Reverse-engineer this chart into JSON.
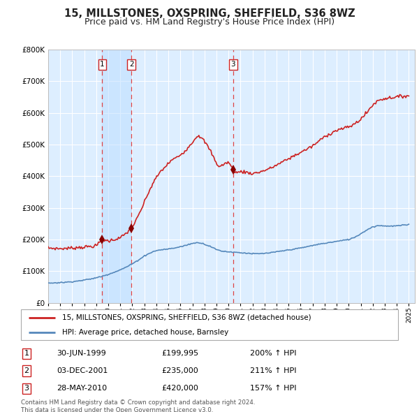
{
  "title": "15, MILLSTONES, OXSPRING, SHEFFIELD, S36 8WZ",
  "subtitle": "Price paid vs. HM Land Registry's House Price Index (HPI)",
  "ylim": [
    0,
    800000
  ],
  "yticks": [
    0,
    100000,
    200000,
    300000,
    400000,
    500000,
    600000,
    700000,
    800000
  ],
  "xlim_start": 1995.0,
  "xlim_end": 2025.5,
  "title_fontsize": 10.5,
  "subtitle_fontsize": 9,
  "background_color": "#ffffff",
  "plot_bg_color": "#ddeeff",
  "grid_color": "#ffffff",
  "red_line_color": "#cc2222",
  "blue_line_color": "#5588bb",
  "sale_marker_color": "#880000",
  "dashed_line_color": "#dd4444",
  "shade_color": "#bbddff",
  "legend_label_red": "15, MILLSTONES, OXSPRING, SHEFFIELD, S36 8WZ (detached house)",
  "legend_label_blue": "HPI: Average price, detached house, Barnsley",
  "footer_text": "Contains HM Land Registry data © Crown copyright and database right 2024.\nThis data is licensed under the Open Government Licence v3.0.",
  "sales": [
    {
      "number": 1,
      "year": 1999.5,
      "price": 199995,
      "label": "30-JUN-1999",
      "price_str": "£199,995",
      "hpi_str": "200% ↑ HPI"
    },
    {
      "number": 2,
      "year": 2001.92,
      "price": 235000,
      "label": "03-DEC-2001",
      "price_str": "£235,000",
      "hpi_str": "211% ↑ HPI"
    },
    {
      "number": 3,
      "year": 2010.38,
      "price": 420000,
      "label": "28-MAY-2010",
      "price_str": "£420,000",
      "hpi_str": "157% ↑ HPI"
    }
  ],
  "red_anchors": [
    [
      1995.0,
      173000
    ],
    [
      1995.5,
      172000
    ],
    [
      1996.0,
      171000
    ],
    [
      1996.5,
      172000
    ],
    [
      1997.0,
      173000
    ],
    [
      1997.5,
      175000
    ],
    [
      1998.0,
      176000
    ],
    [
      1998.5,
      178000
    ],
    [
      1999.0,
      180000
    ],
    [
      1999.5,
      199995
    ],
    [
      2000.0,
      195000
    ],
    [
      2000.5,
      200000
    ],
    [
      2001.0,
      205000
    ],
    [
      2001.5,
      220000
    ],
    [
      2001.92,
      235000
    ],
    [
      2002.25,
      255000
    ],
    [
      2002.75,
      295000
    ],
    [
      2003.25,
      340000
    ],
    [
      2003.75,
      380000
    ],
    [
      2004.25,
      410000
    ],
    [
      2004.75,
      430000
    ],
    [
      2005.25,
      450000
    ],
    [
      2005.75,
      460000
    ],
    [
      2006.25,
      475000
    ],
    [
      2006.75,
      495000
    ],
    [
      2007.25,
      520000
    ],
    [
      2007.5,
      530000
    ],
    [
      2007.75,
      520000
    ],
    [
      2008.0,
      510000
    ],
    [
      2008.25,
      495000
    ],
    [
      2008.5,
      480000
    ],
    [
      2008.75,
      460000
    ],
    [
      2009.0,
      440000
    ],
    [
      2009.25,
      430000
    ],
    [
      2009.5,
      435000
    ],
    [
      2009.75,
      440000
    ],
    [
      2010.0,
      445000
    ],
    [
      2010.38,
      420000
    ],
    [
      2010.5,
      415000
    ],
    [
      2010.75,
      410000
    ],
    [
      2011.0,
      415000
    ],
    [
      2011.5,
      412000
    ],
    [
      2012.0,
      408000
    ],
    [
      2012.5,
      412000
    ],
    [
      2013.0,
      418000
    ],
    [
      2013.5,
      425000
    ],
    [
      2014.0,
      435000
    ],
    [
      2014.5,
      445000
    ],
    [
      2015.0,
      455000
    ],
    [
      2015.5,
      465000
    ],
    [
      2016.0,
      475000
    ],
    [
      2016.5,
      485000
    ],
    [
      2017.0,
      495000
    ],
    [
      2017.5,
      510000
    ],
    [
      2018.0,
      525000
    ],
    [
      2018.5,
      535000
    ],
    [
      2019.0,
      545000
    ],
    [
      2019.5,
      550000
    ],
    [
      2020.0,
      555000
    ],
    [
      2020.5,
      565000
    ],
    [
      2021.0,
      580000
    ],
    [
      2021.5,
      600000
    ],
    [
      2022.0,
      625000
    ],
    [
      2022.5,
      640000
    ],
    [
      2023.0,
      645000
    ],
    [
      2023.5,
      648000
    ],
    [
      2024.0,
      650000
    ],
    [
      2024.5,
      652000
    ],
    [
      2025.0,
      655000
    ]
  ],
  "blue_anchors": [
    [
      1995.0,
      62000
    ],
    [
      1995.5,
      63000
    ],
    [
      1996.0,
      64000
    ],
    [
      1996.5,
      65000
    ],
    [
      1997.0,
      67000
    ],
    [
      1997.5,
      69000
    ],
    [
      1998.0,
      72000
    ],
    [
      1998.5,
      75000
    ],
    [
      1999.0,
      79000
    ],
    [
      1999.5,
      84000
    ],
    [
      2000.0,
      90000
    ],
    [
      2000.5,
      97000
    ],
    [
      2001.0,
      104000
    ],
    [
      2001.5,
      113000
    ],
    [
      2002.0,
      123000
    ],
    [
      2002.5,
      135000
    ],
    [
      2003.0,
      148000
    ],
    [
      2003.5,
      158000
    ],
    [
      2004.0,
      165000
    ],
    [
      2004.5,
      168000
    ],
    [
      2005.0,
      170000
    ],
    [
      2005.5,
      173000
    ],
    [
      2006.0,
      177000
    ],
    [
      2006.5,
      182000
    ],
    [
      2007.0,
      188000
    ],
    [
      2007.5,
      190000
    ],
    [
      2007.75,
      189000
    ],
    [
      2008.0,
      185000
    ],
    [
      2008.5,
      178000
    ],
    [
      2009.0,
      168000
    ],
    [
      2009.5,
      163000
    ],
    [
      2009.75,
      162000
    ],
    [
      2010.0,
      161000
    ],
    [
      2010.5,
      160000
    ],
    [
      2011.0,
      158000
    ],
    [
      2011.5,
      157000
    ],
    [
      2012.0,
      155000
    ],
    [
      2012.5,
      155000
    ],
    [
      2013.0,
      156000
    ],
    [
      2013.5,
      158000
    ],
    [
      2014.0,
      161000
    ],
    [
      2014.5,
      164000
    ],
    [
      2015.0,
      167000
    ],
    [
      2015.5,
      170000
    ],
    [
      2016.0,
      173000
    ],
    [
      2016.5,
      177000
    ],
    [
      2017.0,
      181000
    ],
    [
      2017.5,
      185000
    ],
    [
      2018.0,
      188000
    ],
    [
      2018.5,
      191000
    ],
    [
      2019.0,
      194000
    ],
    [
      2019.5,
      197000
    ],
    [
      2020.0,
      200000
    ],
    [
      2020.5,
      207000
    ],
    [
      2021.0,
      218000
    ],
    [
      2021.5,
      230000
    ],
    [
      2022.0,
      240000
    ],
    [
      2022.5,
      244000
    ],
    [
      2023.0,
      243000
    ],
    [
      2023.5,
      242000
    ],
    [
      2024.0,
      243000
    ],
    [
      2024.5,
      245000
    ],
    [
      2025.0,
      247000
    ]
  ]
}
